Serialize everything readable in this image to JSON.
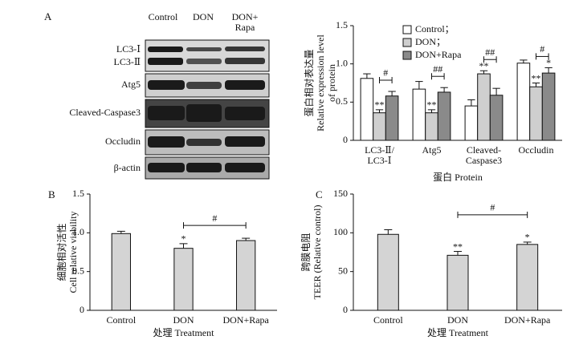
{
  "blot": {
    "panel_label": "A",
    "lanes": [
      "Control",
      "DON",
      "DON+\nRapa"
    ],
    "rows": [
      [
        "LC3-Ⅰ",
        "LC3-Ⅱ"
      ],
      [
        "Atg5"
      ],
      [
        "Cleaved-Caspase3"
      ],
      [
        "Occludin"
      ],
      [
        "β-actin"
      ]
    ]
  },
  "chart_data": [
    {
      "type": "bar",
      "ylabel": "蛋白相对表达量\nRelative expression level\nof protein",
      "xlabel": "蛋白 Protein",
      "categories": [
        "LC3-Ⅱ/\nLC3-Ⅰ",
        "Atg5",
        "Cleaved-\nCaspase3",
        "Occludin"
      ],
      "series": [
        {
          "name": "Control；",
          "color": "#ffffff",
          "values": [
            0.81,
            0.67,
            0.45,
            1.01
          ],
          "errors": [
            0.06,
            0.1,
            0.08,
            0.04
          ]
        },
        {
          "name": "DON；",
          "color": "#cfcfcf",
          "values": [
            0.36,
            0.36,
            0.87,
            0.7
          ],
          "errors": [
            0.04,
            0.04,
            0.04,
            0.05
          ]
        },
        {
          "name": "DON+Rapa",
          "color": "#8a8a8a",
          "values": [
            0.58,
            0.63,
            0.59,
            0.88
          ],
          "errors": [
            0.06,
            0.06,
            0.09,
            0.07
          ]
        }
      ],
      "ylim": [
        0,
        1.5
      ],
      "yticks": [
        0,
        0.5,
        {
          "value": 1,
          "label": "1.0"
        },
        1.5
      ],
      "legend": "top",
      "annotations": [
        {
          "text": "**",
          "category": 0,
          "series": 1
        },
        {
          "text": "#",
          "category": 0,
          "between": [
            1,
            2
          ]
        },
        {
          "text": "**",
          "category": 1,
          "series": 1
        },
        {
          "text": "##",
          "category": 1,
          "between": [
            1,
            2
          ]
        },
        {
          "text": "**",
          "category": 2,
          "series": 1
        },
        {
          "text": "##",
          "category": 2,
          "between": [
            1,
            2
          ]
        },
        {
          "text": "**",
          "category": 3,
          "series": 1
        },
        {
          "text": "*",
          "category": 3,
          "series": 2
        },
        {
          "text": "#",
          "category": 3,
          "between": [
            1,
            2
          ]
        }
      ]
    },
    {
      "type": "bar",
      "panel_label": "B",
      "ylabel": "细胞相对活性\nCell relative viability",
      "xlabel": "处理 Treatment",
      "categories": [
        "Control",
        "DON",
        "DON+Rapa"
      ],
      "series": [
        {
          "color": "#d4d4d4",
          "values": [
            0.99,
            0.8,
            0.9
          ],
          "errors": [
            0.03,
            0.06,
            0.03
          ]
        }
      ],
      "ylim": [
        0,
        1.5
      ],
      "yticks": [
        0,
        0.5,
        {
          "value": 1,
          "label": "1.0"
        },
        1.5
      ],
      "annotations": [
        {
          "text": "*",
          "category": 1,
          "series": 0
        },
        {
          "text": "#",
          "between": [
            1,
            2
          ]
        }
      ]
    },
    {
      "type": "bar",
      "panel_label": "C",
      "ylabel": "跨膜电阻\nTEER (Relative control)",
      "xlabel": "处理 Treatment",
      "categories": [
        "Control",
        "DON",
        "DON+Rapa"
      ],
      "series": [
        {
          "color": "#d4d4d4",
          "values": [
            98,
            71,
            85
          ],
          "errors": [
            6,
            5,
            3
          ]
        }
      ],
      "ylim": [
        0,
        150
      ],
      "yticks": [
        0,
        50,
        100,
        150
      ],
      "annotations": [
        {
          "text": "**",
          "category": 1,
          "series": 0
        },
        {
          "text": "*",
          "category": 2,
          "series": 0
        },
        {
          "text": "#",
          "between": [
            1,
            2
          ]
        }
      ]
    }
  ]
}
